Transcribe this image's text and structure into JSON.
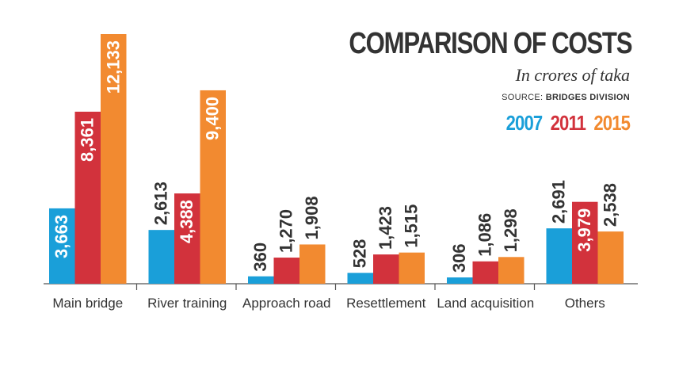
{
  "chart_data": {
    "type": "bar",
    "title": "COMPARISON OF COSTS",
    "subtitle": "In crores of taka",
    "source_prefix": "SOURCE:",
    "source_name": "BRIDGES DIVISION",
    "categories": [
      "Main bridge",
      "River training",
      "Approach road",
      "Resettlement",
      "Land acquisition",
      "Others"
    ],
    "series": [
      {
        "name": "2007",
        "color": "#1a9fd9",
        "values": [
          3663,
          2613,
          360,
          528,
          306,
          2691
        ],
        "labels": [
          "3,663",
          "2,613",
          "360",
          "528",
          "306",
          "2,691"
        ]
      },
      {
        "name": "2011",
        "color": "#d2323c",
        "values": [
          8361,
          4388,
          1270,
          1423,
          1086,
          3979
        ],
        "labels": [
          "8,361",
          "4,388",
          "1,270",
          "1,423",
          "1,086",
          "3,979"
        ]
      },
      {
        "name": "2015",
        "color": "#f28a30",
        "values": [
          12133,
          9400,
          1908,
          1515,
          1298,
          2538
        ],
        "labels": [
          "12,133",
          "9,400",
          "1,908",
          "1,515",
          "1,298",
          "2,538"
        ]
      }
    ],
    "ylim": [
      0,
      12133
    ],
    "xlabel": "",
    "ylabel": "",
    "grid": false
  }
}
